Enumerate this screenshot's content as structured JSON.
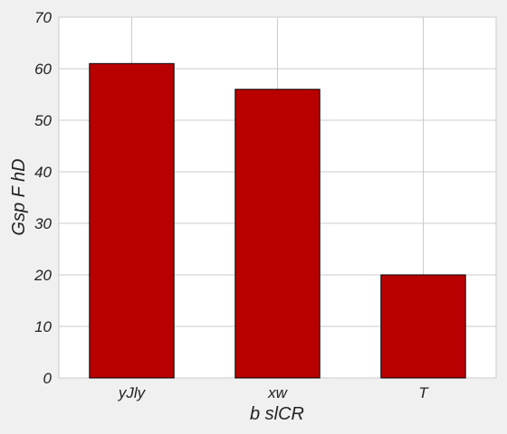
{
  "chart_data": {
    "type": "bar",
    "categories": [
      "yJly",
      "xw",
      "T"
    ],
    "values": [
      61,
      56,
      20
    ],
    "xlabel": "b slCR",
    "ylabel": "Gsp F hD",
    "ylim": [
      0,
      70
    ],
    "yticks": [
      0,
      10,
      20,
      30,
      40,
      50,
      60,
      70
    ],
    "grid": true,
    "legend": "none",
    "colors": {
      "bar": "#b90000",
      "bar_edge": "#000000",
      "plot_background": "#ffffff",
      "figure_background": "#f0f0f0",
      "grid": "#cbcbcb",
      "text": "#222222"
    }
  }
}
